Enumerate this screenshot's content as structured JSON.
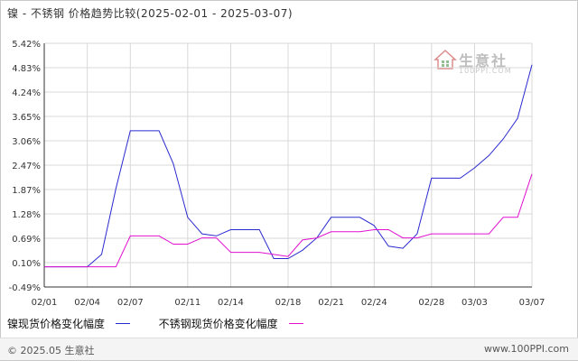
{
  "title": "镍 - 不锈钢 价格趋势比较(2025-02-01 - 2025-03-07)",
  "watermark": {
    "name": "生意社",
    "url": "100PPI.COM"
  },
  "footer": {
    "copyright": "© 2025.05 生意社",
    "site": "www.100PPI.com"
  },
  "colors": {
    "nickel": "#2a2ad0",
    "stainless": "#e010d0",
    "grid": "#d8d8d8",
    "axis": "#333333"
  },
  "chart_data": {
    "type": "line",
    "xlabel": "",
    "ylabel": "",
    "ylim": [
      -0.49,
      5.42
    ],
    "yticks": [
      "5.42%",
      "4.83%",
      "4.24%",
      "3.65%",
      "3.06%",
      "2.47%",
      "1.87%",
      "1.28%",
      "0.69%",
      "0.10%",
      "-0.49%"
    ],
    "xlim": [
      "02/01",
      "03/07"
    ],
    "xticks": [
      "02/01",
      "02/04",
      "02/07",
      "02/11",
      "02/14",
      "02/18",
      "02/21",
      "02/24",
      "02/28",
      "03/03",
      "03/07"
    ],
    "legend_position": "bottom",
    "grid": true,
    "series": [
      {
        "name": "镍现货价格变化幅度",
        "color_key": "nickel",
        "x": [
          "02/01",
          "02/02",
          "02/03",
          "02/04",
          "02/05",
          "02/06",
          "02/07",
          "02/08",
          "02/09",
          "02/10",
          "02/11",
          "02/12",
          "02/13",
          "02/14",
          "02/15",
          "02/16",
          "02/17",
          "02/18",
          "02/19",
          "02/20",
          "02/21",
          "02/22",
          "02/23",
          "02/24",
          "02/25",
          "02/26",
          "02/27",
          "02/28",
          "03/01",
          "03/02",
          "03/03",
          "03/04",
          "03/05",
          "03/06",
          "03/07"
        ],
        "values": [
          0.0,
          0.0,
          0.0,
          0.0,
          0.3,
          1.9,
          3.3,
          3.3,
          3.3,
          2.5,
          1.2,
          0.8,
          0.75,
          0.9,
          0.9,
          0.9,
          0.2,
          0.2,
          0.4,
          0.7,
          1.2,
          1.2,
          1.2,
          1.0,
          0.5,
          0.45,
          0.8,
          2.15,
          2.15,
          2.15,
          2.4,
          2.7,
          3.1,
          3.6,
          4.9
        ]
      },
      {
        "name": "不锈钢现货价格变化幅度",
        "color_key": "stainless",
        "x": [
          "02/01",
          "02/02",
          "02/03",
          "02/04",
          "02/05",
          "02/06",
          "02/07",
          "02/08",
          "02/09",
          "02/10",
          "02/11",
          "02/12",
          "02/13",
          "02/14",
          "02/15",
          "02/16",
          "02/17",
          "02/18",
          "02/19",
          "02/20",
          "02/21",
          "02/22",
          "02/23",
          "02/24",
          "02/25",
          "02/26",
          "02/27",
          "02/28",
          "03/01",
          "03/02",
          "03/03",
          "03/04",
          "03/05",
          "03/06",
          "03/07"
        ],
        "values": [
          0.0,
          0.0,
          0.0,
          0.0,
          0.0,
          0.0,
          0.75,
          0.75,
          0.75,
          0.55,
          0.55,
          0.7,
          0.7,
          0.35,
          0.35,
          0.35,
          0.3,
          0.25,
          0.65,
          0.7,
          0.85,
          0.85,
          0.85,
          0.9,
          0.9,
          0.7,
          0.7,
          0.8,
          0.8,
          0.8,
          0.8,
          0.8,
          1.2,
          1.2,
          2.25
        ]
      }
    ]
  }
}
